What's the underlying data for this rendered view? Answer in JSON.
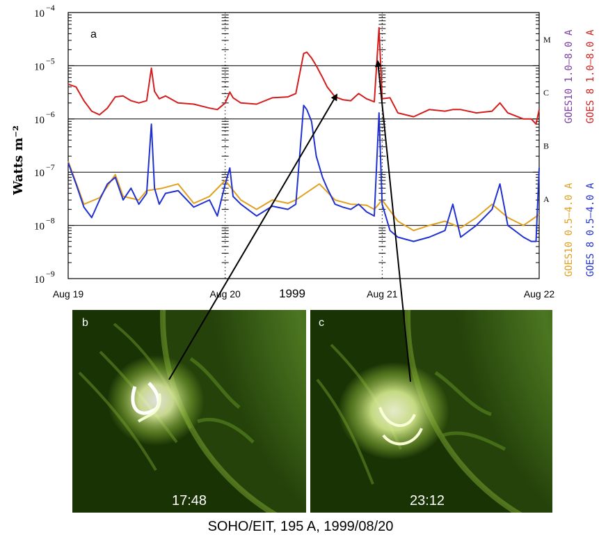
{
  "chart_data": {
    "type": "line",
    "panel_label": "a",
    "ylabel": "Watts m⁻²",
    "yscale": "log",
    "ylim": [
      1e-09,
      0.0001
    ],
    "y_tick_labels": [
      {
        "value": 1e-09,
        "base": "10",
        "exp": "−9"
      },
      {
        "value": 1e-08,
        "base": "10",
        "exp": "−8"
      },
      {
        "value": 1e-07,
        "base": "10",
        "exp": "−7"
      },
      {
        "value": 1e-06,
        "base": "10",
        "exp": "−6"
      },
      {
        "value": 1e-05,
        "base": "10",
        "exp": "−5"
      },
      {
        "value": 0.0001,
        "base": "10",
        "exp": "−4"
      }
    ],
    "xlim": [
      0,
      3
    ],
    "x_tick_labels": [
      {
        "value": 0,
        "label": "Aug 19"
      },
      {
        "value": 1,
        "label": "Aug 20"
      },
      {
        "value": 2,
        "label": "Aug 21"
      },
      {
        "value": 3,
        "label": "Aug 22"
      }
    ],
    "x_year_label": "1999",
    "reference_lines": [
      1e-08,
      1e-07,
      1e-06,
      1e-05
    ],
    "flare_classes": [
      {
        "label": "A",
        "value": 3.2e-08
      },
      {
        "label": "B",
        "value": 3.2e-07
      },
      {
        "label": "C",
        "value": 3.2e-06
      },
      {
        "label": "M",
        "value": 3.2e-05
      }
    ],
    "legend": [
      {
        "text": "GOES10 1.0–8.0 A",
        "color": "#7a3f9e"
      },
      {
        "text": "GOES 8 1.0–8.0 A",
        "color": "#d41c1c"
      },
      {
        "text": "GOES10 0.5–4.0 A",
        "color": "#e0a020"
      },
      {
        "text": "GOES 8 0.5–4.0 A",
        "color": "#2030d0"
      }
    ],
    "series": [
      {
        "name": "GOES 8 1.0–8.0 A",
        "color": "#d41c1c",
        "x": [
          0.0,
          0.05,
          0.1,
          0.15,
          0.2,
          0.25,
          0.3,
          0.35,
          0.4,
          0.45,
          0.5,
          0.53,
          0.55,
          0.58,
          0.62,
          0.7,
          0.8,
          0.9,
          0.95,
          1.0,
          1.03,
          1.05,
          1.1,
          1.2,
          1.3,
          1.4,
          1.45,
          1.5,
          1.52,
          1.55,
          1.58,
          1.62,
          1.65,
          1.7,
          1.75,
          1.8,
          1.85,
          1.9,
          1.95,
          1.98,
          2.0,
          2.05,
          2.1,
          2.2,
          2.3,
          2.4,
          2.45,
          2.5,
          2.6,
          2.7,
          2.75,
          2.8,
          2.9,
          2.95,
          2.98,
          3.0
        ],
        "y": [
          4.5e-06,
          4e-06,
          2.2e-06,
          1.4e-06,
          1.2e-06,
          1.6e-06,
          2.6e-06,
          2.7e-06,
          2.2e-06,
          2e-06,
          2.2e-06,
          9e-06,
          3.3e-06,
          2.4e-06,
          2.7e-06,
          2e-06,
          1.9e-06,
          1.6e-06,
          1.5e-06,
          2e-06,
          3.2e-06,
          2.5e-06,
          2e-06,
          1.9e-06,
          2.5e-06,
          2.6e-06,
          3e-06,
          1.7e-05,
          1.8e-05,
          1.4e-05,
          1e-05,
          6e-06,
          4e-06,
          2.6e-06,
          2.3e-06,
          2.2e-06,
          3e-06,
          2.4e-06,
          2.1e-06,
          5.2e-05,
          2.4e-06,
          2.5e-06,
          1.3e-06,
          1.1e-06,
          1.5e-06,
          1.4e-06,
          1.5e-06,
          1.5e-06,
          1.3e-06,
          1.4e-06,
          2e-06,
          1.3e-06,
          1e-06,
          1e-06,
          8e-07,
          1.5e-06
        ]
      },
      {
        "name": "GOES 8 0.5–4.0 A",
        "color": "#2030d0",
        "x": [
          0.0,
          0.05,
          0.1,
          0.15,
          0.2,
          0.25,
          0.3,
          0.35,
          0.4,
          0.45,
          0.5,
          0.53,
          0.55,
          0.58,
          0.62,
          0.7,
          0.8,
          0.9,
          0.95,
          1.0,
          1.03,
          1.05,
          1.1,
          1.2,
          1.3,
          1.4,
          1.45,
          1.5,
          1.52,
          1.55,
          1.58,
          1.62,
          1.65,
          1.7,
          1.75,
          1.8,
          1.85,
          1.9,
          1.95,
          1.98,
          2.0,
          2.05,
          2.1,
          2.2,
          2.3,
          2.4,
          2.45,
          2.5,
          2.6,
          2.7,
          2.75,
          2.8,
          2.9,
          2.95,
          2.98,
          3.0
        ],
        "y": [
          1.5e-07,
          6e-08,
          2.2e-08,
          1.4e-08,
          3e-08,
          6e-08,
          8e-08,
          3e-08,
          5e-08,
          2.5e-08,
          4e-08,
          8e-07,
          5e-08,
          2.5e-08,
          4e-08,
          4.5e-08,
          2.2e-08,
          3e-08,
          1.5e-08,
          6e-08,
          1.2e-07,
          3.5e-08,
          2.5e-08,
          1.5e-08,
          2.3e-08,
          2e-08,
          2.5e-08,
          1.8e-06,
          1.5e-06,
          9e-07,
          2e-07,
          8e-08,
          5e-08,
          2.5e-08,
          2.2e-08,
          2e-08,
          2.5e-08,
          1.8e-08,
          1.5e-08,
          1.3e-06,
          2.5e-08,
          8e-09,
          6e-09,
          5e-09,
          6e-09,
          8e-09,
          2.5e-08,
          6e-09,
          1e-08,
          2e-08,
          6e-08,
          1e-08,
          6e-09,
          5e-09,
          5e-09,
          1.2e-07
        ]
      },
      {
        "name": "GOES10 0.5–4.0 A",
        "color": "#e0a020",
        "x": [
          0.0,
          0.1,
          0.2,
          0.3,
          0.35,
          0.45,
          0.5,
          0.6,
          0.7,
          0.8,
          0.9,
          1.0,
          1.1,
          1.2,
          1.3,
          1.4,
          1.45,
          1.6,
          1.7,
          1.8,
          1.9,
          1.95,
          2.0,
          2.1,
          2.2,
          2.3,
          2.4,
          2.5,
          2.6,
          2.7,
          2.8,
          2.9,
          3.0
        ],
        "y": [
          1.6e-07,
          2.5e-08,
          3.3e-08,
          9e-08,
          3.5e-08,
          3e-08,
          4.5e-08,
          5e-08,
          6e-08,
          2.6e-08,
          3.5e-08,
          7e-08,
          3e-08,
          2e-08,
          3e-08,
          2.6e-08,
          3e-08,
          6e-08,
          3e-08,
          2.5e-08,
          2.4e-08,
          2e-08,
          3e-08,
          1.2e-08,
          8e-09,
          1e-08,
          1.2e-08,
          9e-09,
          1.4e-08,
          2.5e-08,
          1.4e-08,
          1e-08,
          1.6e-08
        ]
      }
    ]
  },
  "images": {
    "b": {
      "label": "b",
      "time": "17:48"
    },
    "c": {
      "label": "c",
      "time": "23:12"
    },
    "caption": "SOHO/EIT, 195 A, 1999/08/20"
  }
}
